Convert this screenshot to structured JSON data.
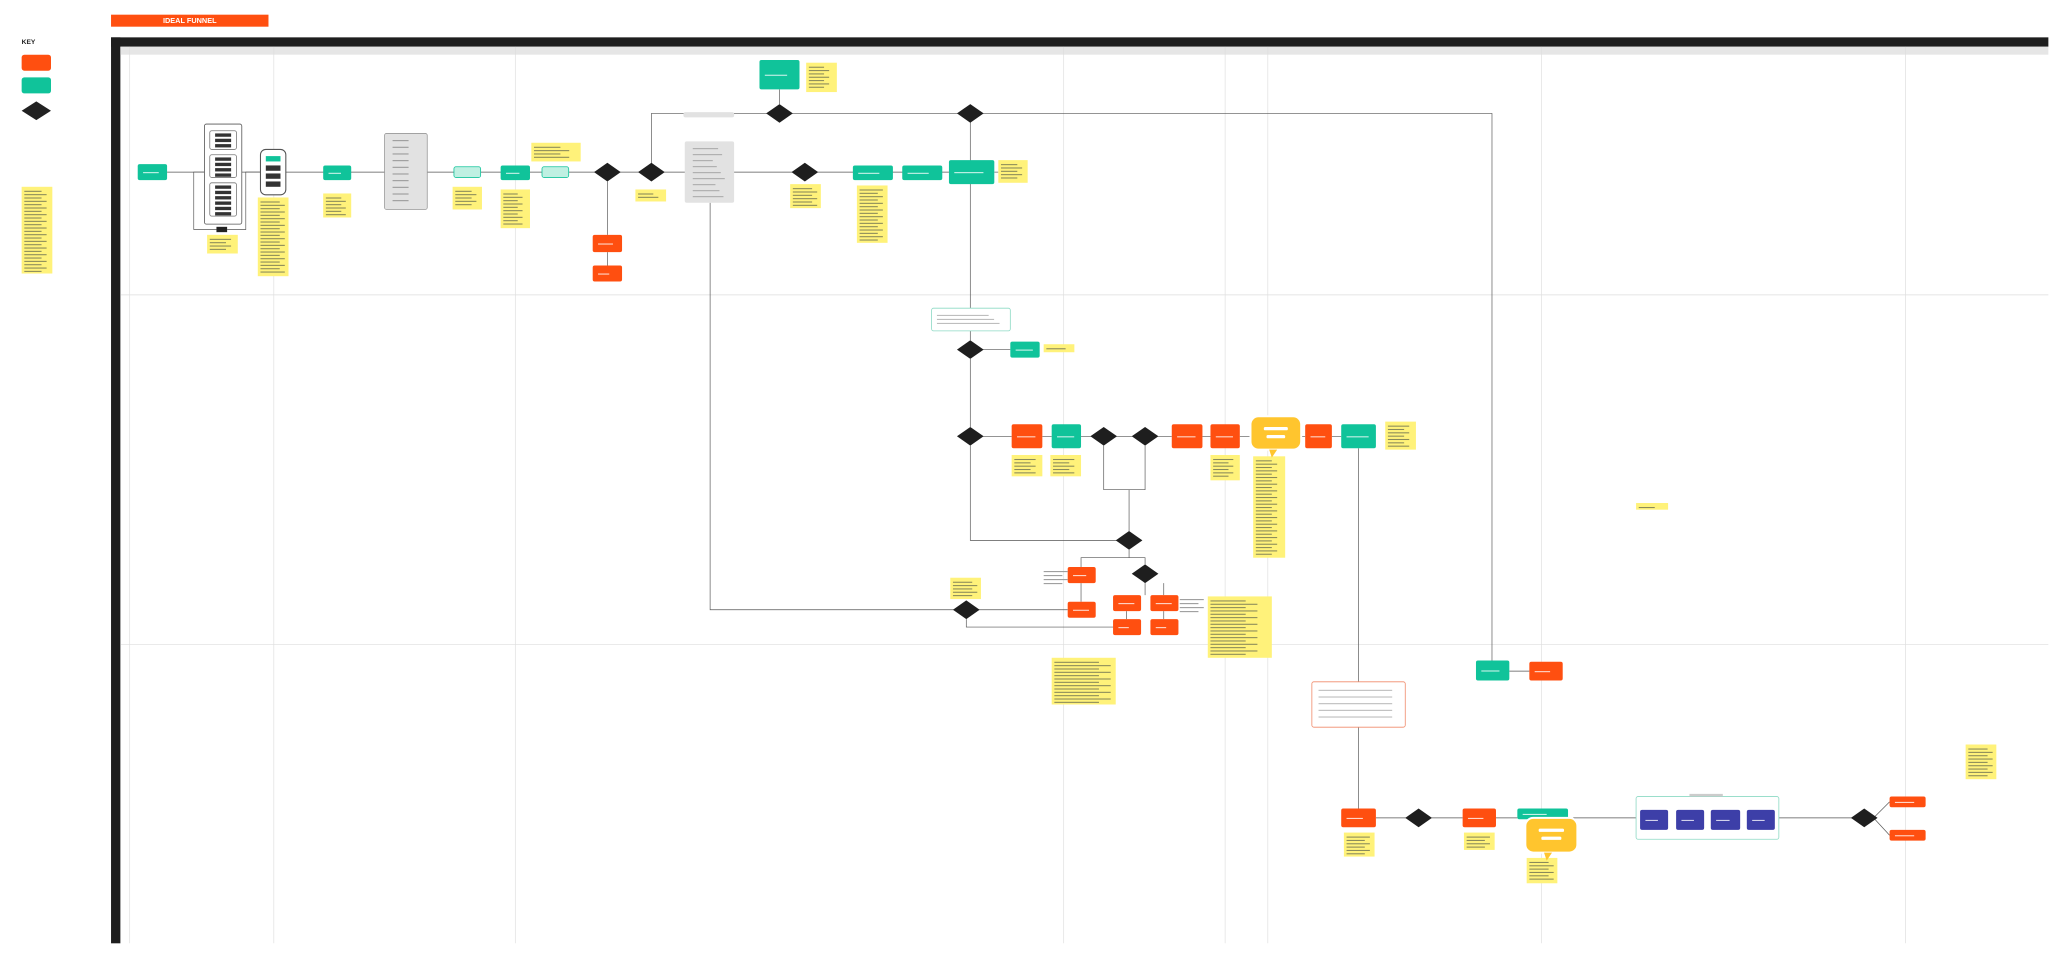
{
  "header": {
    "title": "IDEAL FUNNEL"
  },
  "key": {
    "title": "KEY"
  }
}
